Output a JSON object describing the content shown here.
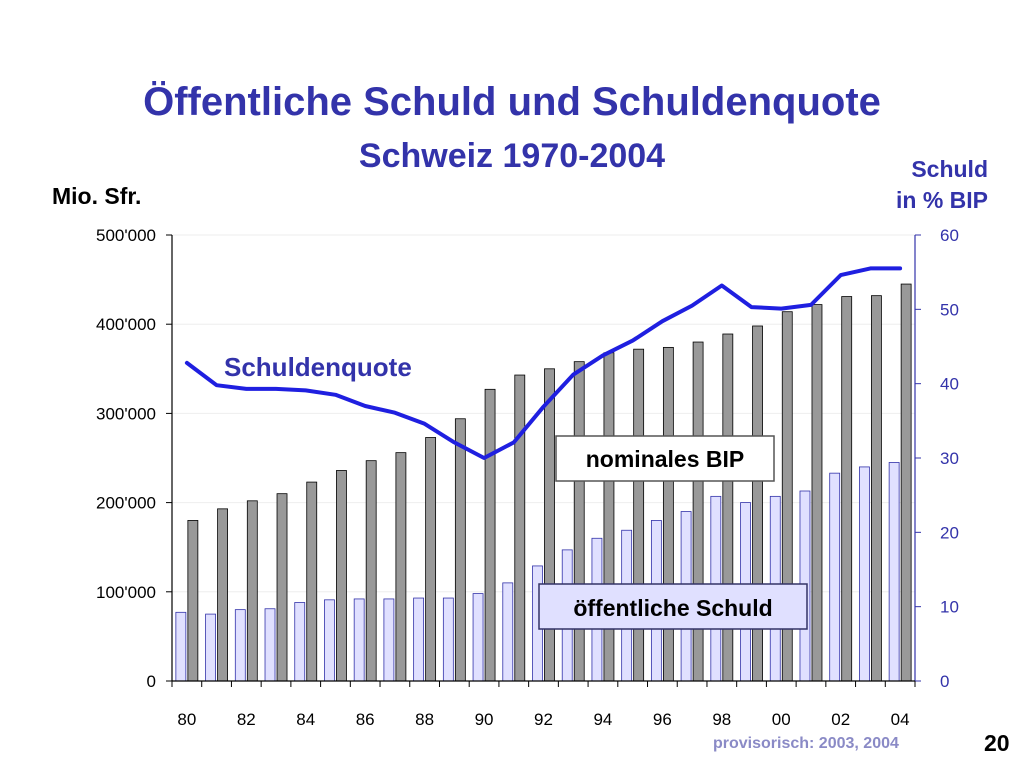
{
  "page_number": "20",
  "footnote": "provisorisch: 2003, 2004",
  "colors": {
    "title": "#3333aa",
    "bip_bar": "#999999",
    "schuld_bar": "#e0e0ff",
    "quote_line": "#1f1fe0"
  },
  "chart_data": {
    "type": "bar",
    "title": "Öffentliche Schuld und Schuldenquote",
    "subtitle": "Schweiz 1970-2004",
    "ylabel": "Mio. Sfr.",
    "ylabel_right": [
      "Schuld",
      "in % BIP"
    ],
    "ylim": [
      0,
      500000
    ],
    "ylim_right": [
      0,
      60
    ],
    "yticks": [
      "0",
      "100'000",
      "200'000",
      "300'000",
      "400'000",
      "500'000"
    ],
    "yticks_right": [
      "0",
      "10",
      "20",
      "30",
      "40",
      "50",
      "60"
    ],
    "categories": [
      "80",
      "81",
      "82",
      "83",
      "84",
      "85",
      "86",
      "87",
      "88",
      "89",
      "90",
      "91",
      "92",
      "93",
      "94",
      "95",
      "96",
      "97",
      "98",
      "99",
      "00",
      "01",
      "02",
      "03",
      "04"
    ],
    "xtick_labels": [
      "80",
      "82",
      "84",
      "86",
      "88",
      "90",
      "92",
      "94",
      "96",
      "98",
      "00",
      "02",
      "04"
    ],
    "series": [
      {
        "name": "öffentliche Schuld",
        "type": "bar",
        "axis": "left",
        "values": [
          77000,
          75000,
          80000,
          81000,
          88000,
          91000,
          92000,
          92000,
          93000,
          93000,
          98000,
          110000,
          129000,
          147000,
          160000,
          169000,
          180000,
          190000,
          207000,
          200000,
          207000,
          213000,
          233000,
          240000,
          245000
        ]
      },
      {
        "name": "nominales BIP",
        "type": "bar",
        "axis": "left",
        "values": [
          180000,
          193000,
          202000,
          210000,
          223000,
          236000,
          247000,
          256000,
          273000,
          294000,
          327000,
          343000,
          350000,
          358000,
          368000,
          372000,
          374000,
          380000,
          389000,
          398000,
          414000,
          422000,
          431000,
          432000,
          445000
        ]
      },
      {
        "name": "Schuldenquote",
        "type": "line",
        "axis": "right",
        "values": [
          42.8,
          39.8,
          39.3,
          39.3,
          39.1,
          38.5,
          37.0,
          36.1,
          34.6,
          32.1,
          30.0,
          32.1,
          36.9,
          41.2,
          43.8,
          45.8,
          48.4,
          50.5,
          53.2,
          50.3,
          50.1,
          50.6,
          54.6,
          55.5,
          55.5
        ]
      }
    ],
    "annotations": {
      "line_label": "Schuldenquote",
      "bip_box": "nominales BIP",
      "schuld_box": "öffentliche Schuld"
    }
  }
}
